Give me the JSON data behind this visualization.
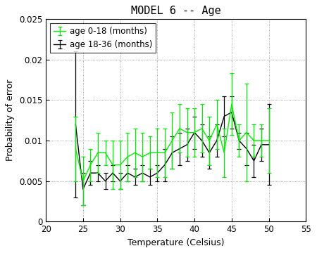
{
  "title": "MODEL 6 -- Age",
  "xlabel": "Temperature (Celsius)",
  "ylabel": "Probability of error",
  "xlim": [
    20,
    55
  ],
  "ylim": [
    0,
    0.025
  ],
  "xticks": [
    20,
    25,
    30,
    35,
    40,
    45,
    50,
    55
  ],
  "yticks": [
    0,
    0.005,
    0.01,
    0.015,
    0.02,
    0.025
  ],
  "green_label": "age 0-18 (months)",
  "black_label": "age 18-36 (months)",
  "green_color": "#00ee00",
  "black_color": "#000000",
  "temp": [
    24,
    25,
    26,
    27,
    28,
    29,
    30,
    31,
    32,
    33,
    34,
    35,
    36,
    37,
    38,
    39,
    40,
    41,
    42,
    43,
    44,
    45,
    46,
    47,
    48,
    49,
    50
  ],
  "green_y": [
    0.009,
    0.005,
    0.007,
    0.0085,
    0.0085,
    0.007,
    0.007,
    0.008,
    0.0085,
    0.008,
    0.0085,
    0.0085,
    0.0085,
    0.01,
    0.0115,
    0.011,
    0.011,
    0.0115,
    0.01,
    0.012,
    0.0085,
    0.0145,
    0.01,
    0.011,
    0.01,
    0.01,
    0.01
  ],
  "green_err": [
    0.004,
    0.003,
    0.002,
    0.0025,
    0.0015,
    0.003,
    0.003,
    0.003,
    0.003,
    0.003,
    0.002,
    0.003,
    0.003,
    0.0035,
    0.003,
    0.003,
    0.003,
    0.003,
    0.003,
    0.003,
    0.003,
    0.0038,
    0.002,
    0.006,
    0.002,
    0.002,
    0.004
  ],
  "black_y": [
    0.012,
    0.004,
    0.006,
    0.006,
    0.005,
    0.006,
    0.005,
    0.006,
    0.0055,
    0.006,
    0.0055,
    0.006,
    0.007,
    0.0085,
    0.009,
    0.0095,
    0.011,
    0.01,
    0.0085,
    0.01,
    0.013,
    0.0135,
    0.01,
    0.009,
    0.0075,
    0.0095,
    0.0095
  ],
  "black_err": [
    0.009,
    0.002,
    0.0015,
    0.001,
    0.001,
    0.001,
    0.001,
    0.001,
    0.001,
    0.001,
    0.001,
    0.001,
    0.002,
    0.002,
    0.002,
    0.002,
    0.002,
    0.002,
    0.002,
    0.002,
    0.0025,
    0.002,
    0.001,
    0.002,
    0.002,
    0.002,
    0.005
  ],
  "background": "#ffffff",
  "title_fontsize": 11,
  "label_fontsize": 9,
  "tick_fontsize": 8.5,
  "legend_fontsize": 8.5
}
